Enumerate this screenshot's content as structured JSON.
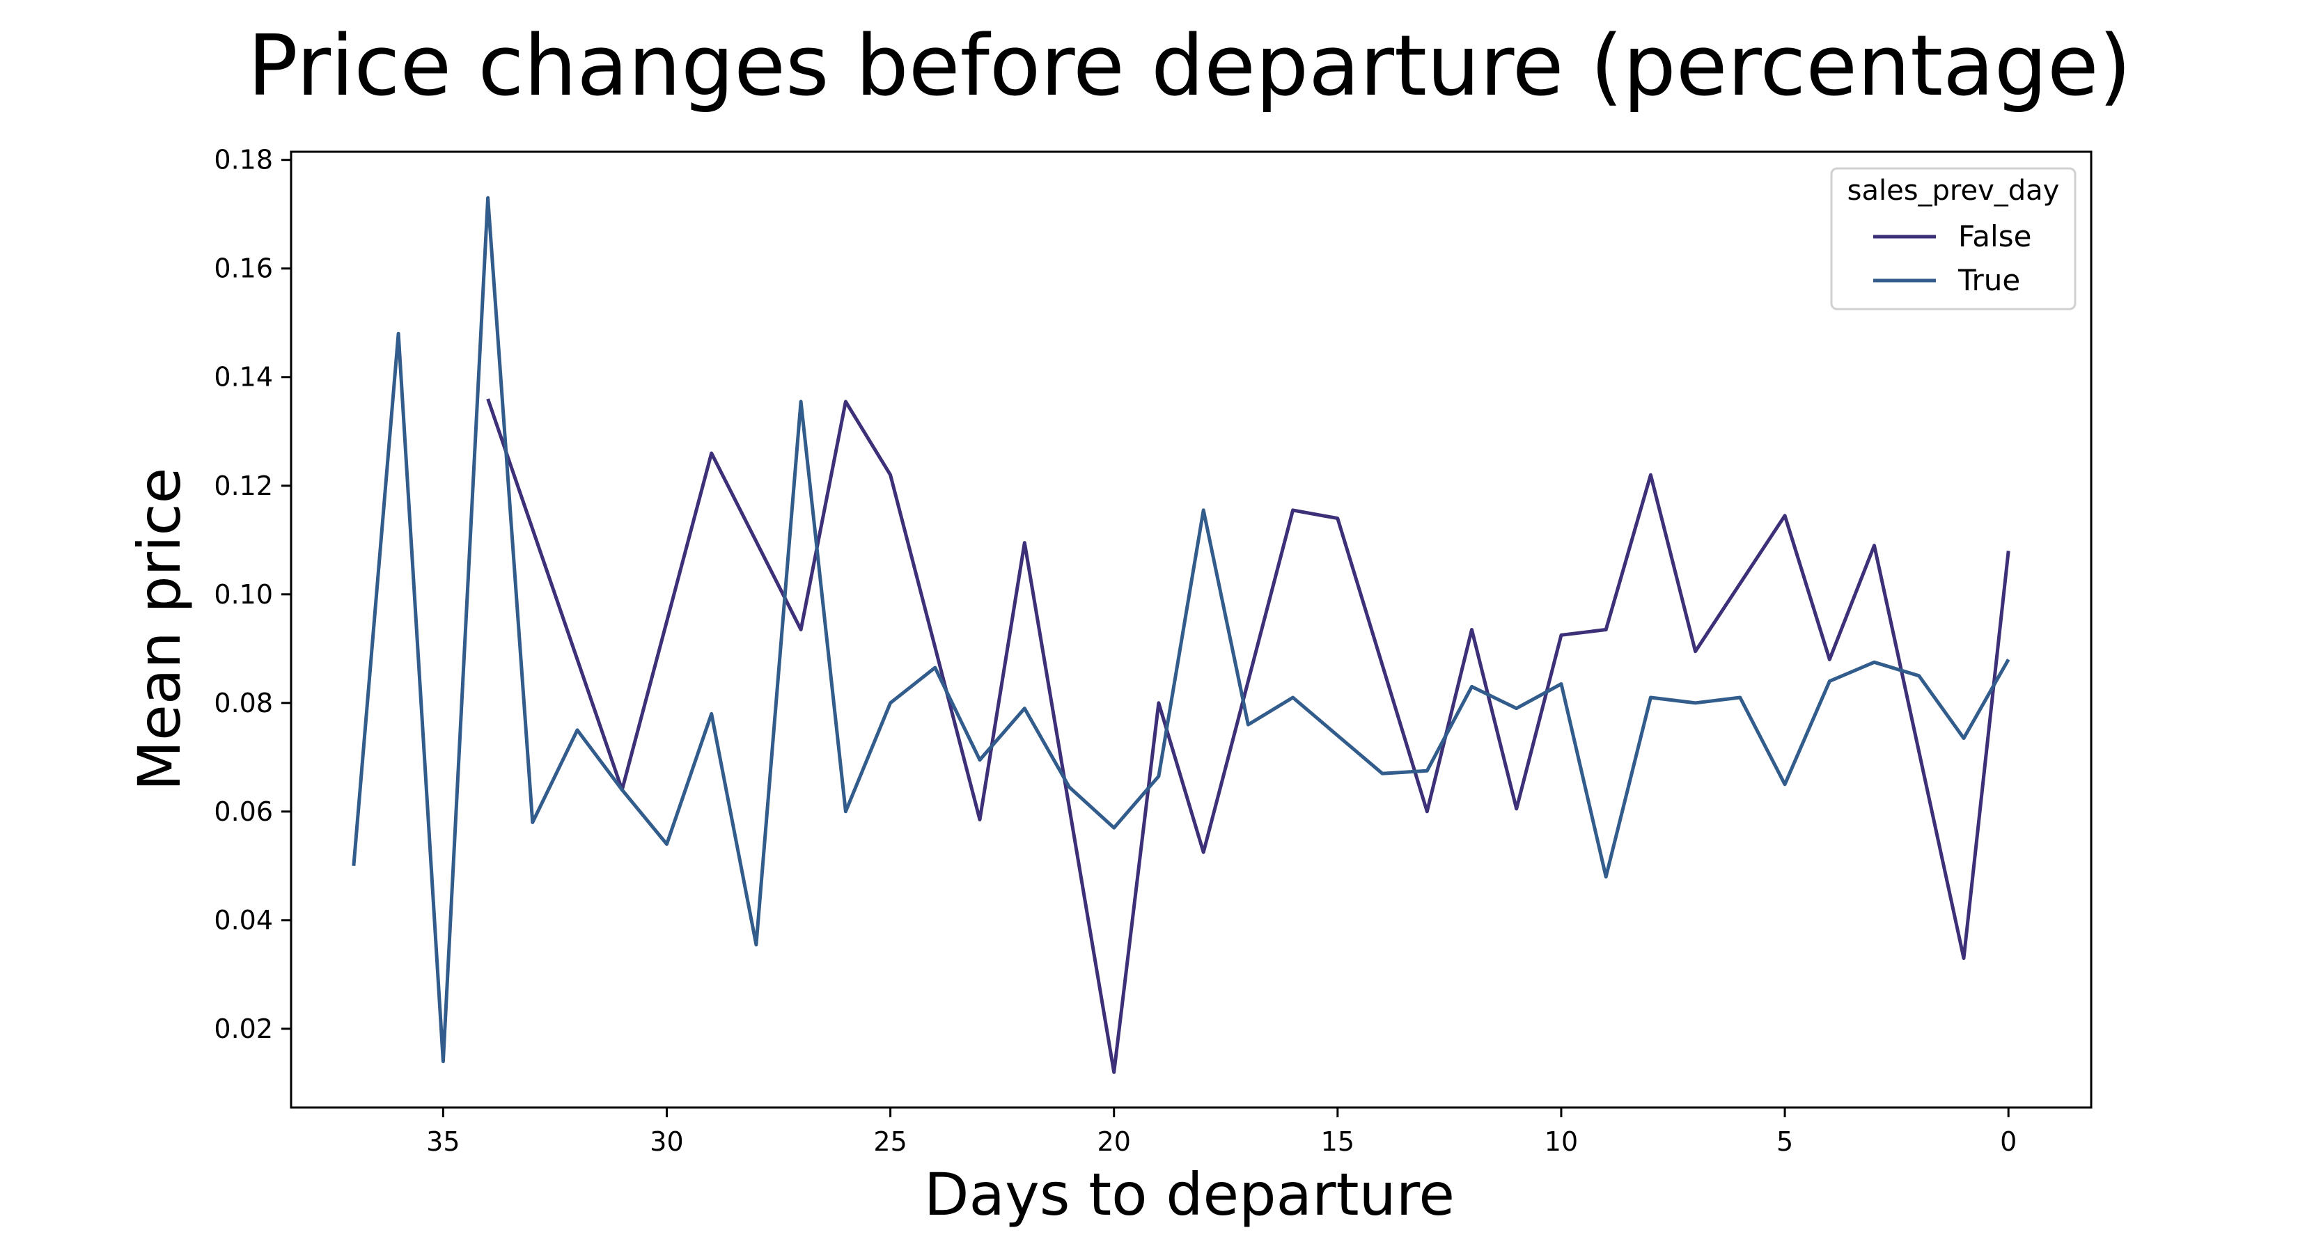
{
  "chart_data": {
    "type": "line",
    "title": "Price changes before departure (percentage)",
    "xlabel": "Days to departure",
    "ylabel": "Mean price",
    "x_inverted": true,
    "xlim": [
      38.4,
      -1.85
    ],
    "ylim": [
      0.0055,
      0.1815
    ],
    "xticks": [
      35,
      30,
      25,
      20,
      15,
      10,
      5,
      0
    ],
    "yticks": [
      0.02,
      0.04,
      0.06,
      0.08,
      0.1,
      0.12,
      0.14,
      0.16,
      0.18
    ],
    "ytick_labels": [
      "0.02",
      "0.04",
      "0.06",
      "0.08",
      "0.10",
      "0.12",
      "0.14",
      "0.16",
      "0.18"
    ],
    "grid": false,
    "legend": {
      "title": "sales_prev_day",
      "position": "top-right"
    },
    "series": [
      {
        "name": "False",
        "color": "#3d2f78",
        "points": [
          [
            34,
            0.136
          ],
          [
            31,
            0.064
          ],
          [
            29,
            0.126
          ],
          [
            27,
            0.0935
          ],
          [
            26,
            0.1355
          ],
          [
            25,
            0.122
          ],
          [
            23,
            0.0585
          ],
          [
            22,
            0.1095
          ],
          [
            20,
            0.012
          ],
          [
            19,
            0.08
          ],
          [
            18,
            0.0525
          ],
          [
            16,
            0.1155
          ],
          [
            15,
            0.114
          ],
          [
            13,
            0.06
          ],
          [
            12,
            0.0935
          ],
          [
            11,
            0.0605
          ],
          [
            10,
            0.0925
          ],
          [
            9,
            0.0935
          ],
          [
            8,
            0.122
          ],
          [
            7,
            0.0895
          ],
          [
            5,
            0.1145
          ],
          [
            4,
            0.088
          ],
          [
            3,
            0.109
          ],
          [
            1,
            0.033
          ],
          [
            0,
            0.108
          ]
        ]
      },
      {
        "name": "True",
        "color": "#315c8b",
        "points": [
          [
            37,
            0.05
          ],
          [
            36,
            0.148
          ],
          [
            35,
            0.014
          ],
          [
            34,
            0.173
          ],
          [
            33,
            0.058
          ],
          [
            32,
            0.075
          ],
          [
            31,
            0.064
          ],
          [
            30,
            0.054
          ],
          [
            29,
            0.078
          ],
          [
            28,
            0.0355
          ],
          [
            27,
            0.1355
          ],
          [
            26,
            0.06
          ],
          [
            25,
            0.08
          ],
          [
            24,
            0.0865
          ],
          [
            23,
            0.0695
          ],
          [
            22,
            0.079
          ],
          [
            21,
            0.0645
          ],
          [
            20,
            0.057
          ],
          [
            19,
            0.0665
          ],
          [
            18,
            0.1155
          ],
          [
            17,
            0.076
          ],
          [
            16,
            0.081
          ],
          [
            15,
            0.074
          ],
          [
            14,
            0.067
          ],
          [
            13,
            0.0675
          ],
          [
            12,
            0.083
          ],
          [
            11,
            0.079
          ],
          [
            10,
            0.0835
          ],
          [
            9,
            0.048
          ],
          [
            8,
            0.081
          ],
          [
            7,
            0.08
          ],
          [
            6,
            0.081
          ],
          [
            5,
            0.065
          ],
          [
            4,
            0.084
          ],
          [
            3,
            0.0875
          ],
          [
            2,
            0.085
          ],
          [
            1,
            0.0735
          ],
          [
            0,
            0.088
          ]
        ]
      }
    ]
  }
}
